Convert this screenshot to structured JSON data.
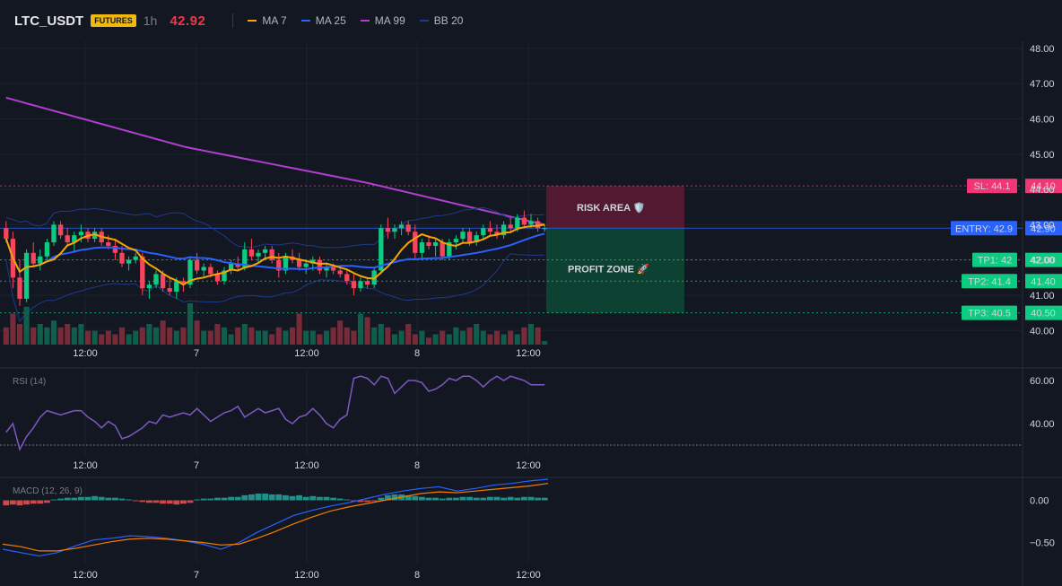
{
  "header": {
    "symbol": "LTC_USDT",
    "badge": "FUTURES",
    "timeframe": "1h",
    "last_price": "42.92",
    "legend": [
      {
        "label": "MA 7",
        "color": "#f7a600"
      },
      {
        "label": "MA 25",
        "color": "#2962ff"
      },
      {
        "label": "MA 99",
        "color": "#b03fd0"
      },
      {
        "label": "BB 20",
        "color": "#1e3a8a"
      }
    ]
  },
  "colors": {
    "up": "#0ecb81",
    "down": "#f6465d",
    "bg": "#131722"
  },
  "chart_data": [
    {
      "type": "candlestick",
      "ylim": [
        39.6,
        48.2
      ],
      "y_ticks": [
        "48.00",
        "47.00",
        "46.00",
        "45.00",
        "44.00",
        "43.00",
        "42.00",
        "41.00",
        "40.00"
      ],
      "x_ticks": [
        "12:00",
        "7",
        "12:00",
        "8",
        "12:00"
      ],
      "x_tick_positions": [
        14,
        30,
        46,
        62,
        78
      ],
      "candle_count": 80,
      "ohlc": [
        [
          42.9,
          43.1,
          42.5,
          42.6
        ],
        [
          42.6,
          42.8,
          41.2,
          41.5
        ],
        [
          41.5,
          42.0,
          40.7,
          40.9
        ],
        [
          40.9,
          42.3,
          40.8,
          42.2
        ],
        [
          42.2,
          42.5,
          41.8,
          41.9
        ],
        [
          41.9,
          42.3,
          41.7,
          42.1
        ],
        [
          42.1,
          42.6,
          42.0,
          42.5
        ],
        [
          42.5,
          43.1,
          42.4,
          43.0
        ],
        [
          43.0,
          43.1,
          42.6,
          42.7
        ],
        [
          42.7,
          42.9,
          42.4,
          42.5
        ],
        [
          42.5,
          42.8,
          42.2,
          42.7
        ],
        [
          42.7,
          43.0,
          42.5,
          42.8
        ],
        [
          42.8,
          42.9,
          42.5,
          42.6
        ],
        [
          42.6,
          42.9,
          42.5,
          42.8
        ],
        [
          42.8,
          42.9,
          42.4,
          42.5
        ],
        [
          42.5,
          42.7,
          42.3,
          42.4
        ],
        [
          42.4,
          42.6,
          42.0,
          42.2
        ],
        [
          42.2,
          42.4,
          41.8,
          41.9
        ],
        [
          41.9,
          42.1,
          41.7,
          42.0
        ],
        [
          42.0,
          42.2,
          41.9,
          42.1
        ],
        [
          42.1,
          42.2,
          41.0,
          41.2
        ],
        [
          41.2,
          41.4,
          40.9,
          41.3
        ],
        [
          41.3,
          41.7,
          41.2,
          41.6
        ],
        [
          41.6,
          41.7,
          41.1,
          41.2
        ],
        [
          41.2,
          41.5,
          41.0,
          41.1
        ],
        [
          41.1,
          41.5,
          40.9,
          41.4
        ],
        [
          41.4,
          41.5,
          41.1,
          41.3
        ],
        [
          41.3,
          42.1,
          41.2,
          42.0
        ],
        [
          42.0,
          42.2,
          41.6,
          41.7
        ],
        [
          41.7,
          41.9,
          41.5,
          41.8
        ],
        [
          41.8,
          41.9,
          41.5,
          41.6
        ],
        [
          41.6,
          41.7,
          41.3,
          41.4
        ],
        [
          41.4,
          41.8,
          41.3,
          41.7
        ],
        [
          41.7,
          42.0,
          41.6,
          41.9
        ],
        [
          41.9,
          42.1,
          41.7,
          41.8
        ],
        [
          41.8,
          42.5,
          41.7,
          42.3
        ],
        [
          42.3,
          42.6,
          42.0,
          42.1
        ],
        [
          42.1,
          42.3,
          41.9,
          42.2
        ],
        [
          42.2,
          42.4,
          42.0,
          42.3
        ],
        [
          42.3,
          42.4,
          41.9,
          42.0
        ],
        [
          42.0,
          42.2,
          41.5,
          41.7
        ],
        [
          41.7,
          42.2,
          41.6,
          42.1
        ],
        [
          42.1,
          42.3,
          41.9,
          42.0
        ],
        [
          42.0,
          42.2,
          41.7,
          41.8
        ],
        [
          41.8,
          42.0,
          41.6,
          41.9
        ],
        [
          41.9,
          42.1,
          41.7,
          42.0
        ],
        [
          42.0,
          42.1,
          41.6,
          41.7
        ],
        [
          41.7,
          41.9,
          41.5,
          41.8
        ],
        [
          41.8,
          41.9,
          41.6,
          41.7
        ],
        [
          41.7,
          41.8,
          41.5,
          41.6
        ],
        [
          41.6,
          41.7,
          41.3,
          41.4
        ],
        [
          41.4,
          41.6,
          41.0,
          41.2
        ],
        [
          41.2,
          41.5,
          41.1,
          41.4
        ],
        [
          41.4,
          41.5,
          41.2,
          41.3
        ],
        [
          41.3,
          41.8,
          41.2,
          41.7
        ],
        [
          41.7,
          43.0,
          41.6,
          42.9
        ],
        [
          42.9,
          43.2,
          42.6,
          42.8
        ],
        [
          42.8,
          43.0,
          42.6,
          42.9
        ],
        [
          42.9,
          43.1,
          42.7,
          43.0
        ],
        [
          43.0,
          43.1,
          42.7,
          42.8
        ],
        [
          42.8,
          43.0,
          42.0,
          42.2
        ],
        [
          42.2,
          42.6,
          42.0,
          42.5
        ],
        [
          42.5,
          42.7,
          42.3,
          42.4
        ],
        [
          42.4,
          42.6,
          42.1,
          42.5
        ],
        [
          42.5,
          42.6,
          42.0,
          42.1
        ],
        [
          42.1,
          42.6,
          42.0,
          42.5
        ],
        [
          42.5,
          42.7,
          42.3,
          42.6
        ],
        [
          42.6,
          42.9,
          42.5,
          42.8
        ],
        [
          42.8,
          42.9,
          42.4,
          42.5
        ],
        [
          42.5,
          42.8,
          42.4,
          42.7
        ],
        [
          42.7,
          43.0,
          42.6,
          42.9
        ],
        [
          42.9,
          43.1,
          42.7,
          42.8
        ],
        [
          42.8,
          43.0,
          42.6,
          42.7
        ],
        [
          42.7,
          43.1,
          42.6,
          43.0
        ],
        [
          43.0,
          43.2,
          42.8,
          42.9
        ],
        [
          42.9,
          43.3,
          42.8,
          43.2
        ],
        [
          43.2,
          43.4,
          42.9,
          43.0
        ],
        [
          43.0,
          43.3,
          42.9,
          43.1
        ],
        [
          43.1,
          43.2,
          42.8,
          42.9
        ],
        [
          42.9,
          43.0,
          42.8,
          42.9
        ]
      ],
      "volume": [
        5,
        9,
        6,
        11,
        5,
        6,
        5,
        7,
        5,
        6,
        5,
        6,
        4,
        4,
        3,
        4,
        3,
        5,
        3,
        4,
        5,
        6,
        5,
        7,
        5,
        4,
        5,
        12,
        7,
        4,
        4,
        6,
        5,
        3,
        5,
        6,
        5,
        4,
        4,
        3,
        5,
        4,
        5,
        9,
        4,
        4,
        3,
        4,
        5,
        7,
        5,
        4,
        9,
        8,
        5,
        6,
        5,
        3,
        4,
        6,
        3,
        4,
        2,
        3,
        4,
        3,
        5,
        4,
        5,
        6,
        4,
        3,
        4,
        3,
        4,
        3,
        5,
        6,
        5,
        1
      ],
      "series": [
        {
          "name": "MA 7"
        },
        {
          "name": "MA 25"
        },
        {
          "name": "MA 99",
          "values": [
            46.6,
            45.2,
            44.2,
            43.0
          ]
        },
        {
          "name": "BB 20"
        }
      ],
      "levels": [
        {
          "label": "SL: 44.1",
          "price": "44.10",
          "value": 44.1,
          "color": "#f23675"
        },
        {
          "label": "ENTRY: 42.9",
          "price": "42.90",
          "value": 42.9,
          "color": "#2962ff"
        },
        {
          "label": "TP1: 42",
          "price": "42.00",
          "value": 42.0,
          "color": "#0ecb81"
        },
        {
          "label": "TP2: 41.4",
          "price": "41.40",
          "value": 41.4,
          "color": "#0ecb81"
        },
        {
          "label": "TP3: 40.5",
          "price": "40.50",
          "value": 40.5,
          "color": "#0ecb81"
        }
      ],
      "zones": [
        {
          "label": "RISK AREA",
          "from": 42.9,
          "to": 44.1,
          "color": "#7a1e3a"
        },
        {
          "label": "PROFIT ZONE",
          "from": 40.5,
          "to": 42.9,
          "color": "#0f5c3f"
        }
      ]
    },
    {
      "type": "line",
      "title": "RSI (14)",
      "ylim": [
        25,
        65
      ],
      "y_ticks": [
        "60.00",
        "40.00"
      ],
      "x_ticks": [
        "12:00",
        "7",
        "12:00",
        "8",
        "12:00"
      ],
      "series": [
        {
          "values": [
            36,
            40,
            28,
            34,
            38,
            43,
            46,
            45,
            44,
            45,
            46,
            46,
            43,
            41,
            38,
            41,
            39,
            33,
            34,
            36,
            38,
            41,
            40,
            44,
            43,
            44,
            45,
            44,
            47,
            44,
            41,
            43,
            45,
            46,
            48,
            43,
            45,
            47,
            45,
            46,
            47,
            42,
            40,
            43,
            44,
            47,
            44,
            40,
            38,
            42,
            44,
            61,
            62,
            61,
            58,
            62,
            61,
            54,
            57,
            60,
            60,
            59,
            55,
            56,
            58,
            61,
            60,
            62,
            62,
            60,
            57,
            60,
            62,
            60,
            62,
            61,
            60,
            58,
            58,
            58
          ]
        }
      ],
      "reference_line": 30
    },
    {
      "type": "bar",
      "title": "MACD (12, 26, 9)",
      "ylim": [
        -0.75,
        0.25
      ],
      "y_ticks": [
        "0.00",
        "−0.50"
      ],
      "x_ticks": [
        "12:00",
        "7",
        "12:00",
        "8",
        "12:00"
      ],
      "histogram": [
        -0.06,
        -0.05,
        -0.06,
        -0.05,
        -0.04,
        -0.04,
        -0.03,
        0.01,
        0.02,
        0.03,
        0.03,
        0.04,
        0.04,
        0.05,
        0.04,
        0.03,
        0.03,
        0.02,
        0.01,
        -0.01,
        -0.02,
        -0.03,
        -0.03,
        -0.04,
        -0.04,
        -0.05,
        -0.04,
        -0.03,
        0.01,
        0.02,
        0.02,
        0.03,
        0.03,
        0.04,
        0.04,
        0.06,
        0.07,
        0.08,
        0.08,
        0.07,
        0.07,
        0.06,
        0.05,
        0.06,
        0.04,
        0.05,
        0.04,
        0.04,
        0.03,
        0.02,
        0.01,
        -0.01,
        -0.02,
        -0.02,
        -0.01,
        0.03,
        0.06,
        0.07,
        0.07,
        0.06,
        0.05,
        0.04,
        0.03,
        0.03,
        0.02,
        0.03,
        0.03,
        0.04,
        0.04,
        0.03,
        0.03,
        0.04,
        0.04,
        0.03,
        0.04,
        0.03,
        0.04,
        0.04,
        0.03,
        0.03
      ],
      "series": [
        {
          "values": [
            -0.58,
            -0.62,
            -0.66,
            -0.62,
            -0.54,
            -0.47,
            -0.45,
            -0.42,
            -0.43,
            -0.45,
            -0.48,
            -0.52,
            -0.58,
            -0.5,
            -0.38,
            -0.28,
            -0.18,
            -0.12,
            -0.07,
            -0.03,
            0.02,
            0.07,
            0.11,
            0.14,
            0.16,
            0.11,
            0.14,
            0.18,
            0.2,
            0.23,
            0.25
          ],
          "color": "#2962ff"
        },
        {
          "values": [
            -0.52,
            -0.55,
            -0.6,
            -0.6,
            -0.57,
            -0.53,
            -0.49,
            -0.46,
            -0.45,
            -0.46,
            -0.48,
            -0.5,
            -0.53,
            -0.52,
            -0.45,
            -0.37,
            -0.28,
            -0.2,
            -0.13,
            -0.08,
            -0.04,
            0.0,
            0.04,
            0.08,
            0.1,
            0.09,
            0.11,
            0.13,
            0.15,
            0.17,
            0.2
          ],
          "color": "#f57c00"
        }
      ]
    }
  ]
}
